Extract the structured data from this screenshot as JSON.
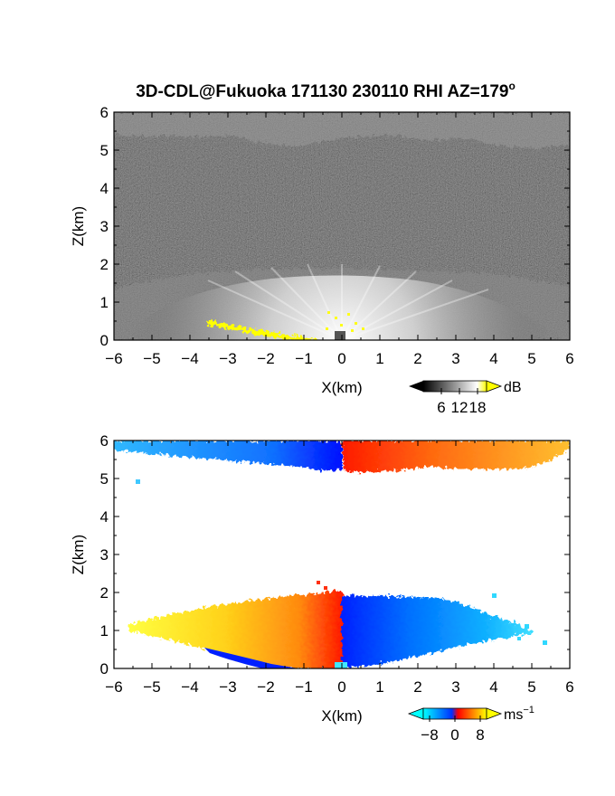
{
  "title": "3D-CDL@Fukuoka 171130 230110 RHI AZ=179",
  "title_degree": "o",
  "chart_data": [
    {
      "type": "heatmap",
      "panel": "reflectivity",
      "xlabel": "X(km)",
      "ylabel": "Z(km)",
      "xlim": [
        -6,
        6
      ],
      "ylim": [
        0,
        6
      ],
      "x_ticks": [
        -6,
        -5,
        -4,
        -3,
        -2,
        -1,
        0,
        1,
        2,
        3,
        4,
        5,
        6
      ],
      "y_ticks": [
        0,
        1,
        2,
        3,
        4,
        5,
        6
      ],
      "colorbar": {
        "unit": "dB",
        "ticks": [
          "6",
          "12",
          "18"
        ],
        "range": [
          0,
          21
        ],
        "colors": [
          "#000000",
          "#ffffff",
          "#ffff00"
        ]
      },
      "features": [
        {
          "name": "bright low layer",
          "x": [
            -6,
            6
          ],
          "z": [
            0,
            2
          ]
        },
        {
          "name": "bright cloud top",
          "x": [
            -6,
            6
          ],
          "z": [
            5,
            6
          ]
        },
        {
          "name": "yellow ground echo",
          "x": [
            -3.6,
            -0.6
          ],
          "z": [
            0,
            0.55
          ]
        }
      ]
    },
    {
      "type": "heatmap",
      "panel": "doppler velocity",
      "xlabel": "X(km)",
      "ylabel": "Z(km)",
      "xlim": [
        -6,
        6
      ],
      "ylim": [
        0,
        6
      ],
      "x_ticks": [
        -6,
        -5,
        -4,
        -3,
        -2,
        -1,
        0,
        1,
        2,
        3,
        4,
        5,
        6
      ],
      "y_ticks": [
        0,
        1,
        2,
        3,
        4,
        5,
        6
      ],
      "colorbar": {
        "unit": "ms",
        "unit_exponent": "−1",
        "ticks": [
          "−8",
          "0",
          "8"
        ],
        "range": [
          -10,
          10
        ],
        "colors": [
          "#00ffff",
          "#0040ff",
          "#ff0000",
          "#ffff00"
        ]
      },
      "features": [
        {
          "name": "positive velocity region (warm colors)",
          "x": [
            -5.7,
            0
          ],
          "z": [
            0,
            1.9
          ],
          "velocity": 6
        },
        {
          "name": "negative velocity region (cool colors)",
          "x": [
            0,
            5.5
          ],
          "z": [
            0,
            1.9
          ],
          "velocity": -6
        },
        {
          "name": "upper layer negative",
          "x": [
            -6,
            0
          ],
          "z": [
            5.2,
            6
          ],
          "velocity": -6
        },
        {
          "name": "upper layer positive",
          "x": [
            0,
            5.8
          ],
          "z": [
            5.2,
            6
          ],
          "velocity": 6
        }
      ]
    }
  ]
}
